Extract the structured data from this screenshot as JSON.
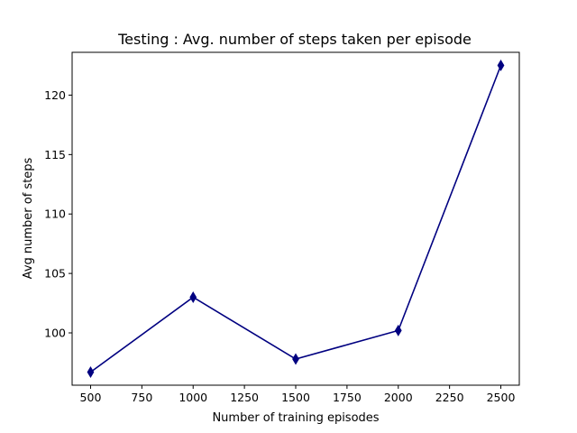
{
  "chart_data": {
    "type": "line",
    "title": "Testing : Avg. number of steps taken per episode",
    "xlabel": "Number of training episodes",
    "ylabel": "Avg number of steps",
    "x": [
      500,
      1000,
      1500,
      2000,
      2500
    ],
    "series": [
      {
        "values": [
          96.7,
          103.0,
          97.8,
          100.2,
          122.5
        ]
      }
    ],
    "xlim": [
      410,
      2590
    ],
    "ylim": [
      95.6,
      123.6
    ],
    "xticks": [
      500,
      750,
      1000,
      1250,
      1500,
      1750,
      2000,
      2250,
      2500
    ],
    "yticks": [
      100,
      105,
      110,
      115,
      120
    ],
    "grid": false,
    "line_color": "#000080",
    "marker": "thin-diamond"
  }
}
